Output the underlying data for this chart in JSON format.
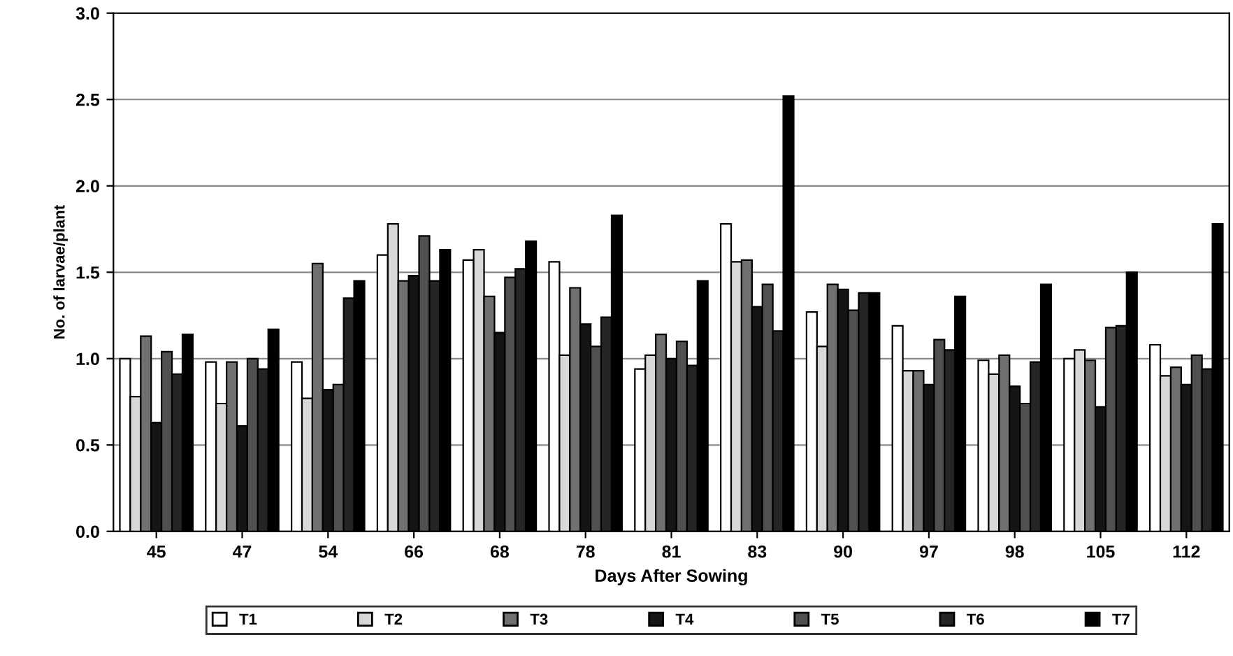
{
  "chart_data": {
    "type": "bar",
    "xlabel": "Days After Sowing",
    "ylabel": "No. of larvae/plant",
    "categories": [
      "45",
      "47",
      "54",
      "66",
      "68",
      "78",
      "81",
      "83",
      "90",
      "97",
      "98",
      "105",
      "112"
    ],
    "series": [
      {
        "name": "T1",
        "color": "#ffffff",
        "values": [
          1.0,
          0.98,
          0.98,
          1.6,
          1.57,
          1.56,
          0.94,
          1.78,
          1.27,
          1.19,
          0.99,
          1.0,
          1.08
        ]
      },
      {
        "name": "T2",
        "color": "#d8d8d8",
        "values": [
          0.78,
          0.74,
          0.77,
          1.78,
          1.63,
          1.02,
          1.02,
          1.56,
          1.07,
          0.93,
          0.91,
          1.05,
          0.9
        ]
      },
      {
        "name": "T3",
        "color": "#707070",
        "values": [
          1.13,
          0.98,
          1.55,
          1.45,
          1.36,
          1.41,
          1.14,
          1.57,
          1.43,
          0.93,
          1.02,
          0.99,
          0.95
        ]
      },
      {
        "name": "T4",
        "color": "#151515",
        "values": [
          0.63,
          0.61,
          0.82,
          1.48,
          1.15,
          1.2,
          1.0,
          1.3,
          1.4,
          0.85,
          0.84,
          0.72,
          0.85
        ]
      },
      {
        "name": "T5",
        "color": "#505050",
        "values": [
          1.04,
          1.0,
          0.85,
          1.71,
          1.47,
          1.07,
          1.1,
          1.43,
          1.28,
          1.11,
          0.74,
          1.18,
          1.02
        ]
      },
      {
        "name": "T6",
        "color": "#252525",
        "values": [
          0.91,
          0.94,
          1.35,
          1.45,
          1.52,
          1.24,
          0.96,
          1.16,
          1.38,
          1.05,
          0.98,
          1.19,
          0.94
        ]
      },
      {
        "name": "T7",
        "color": "#000000",
        "values": [
          1.14,
          1.17,
          1.45,
          1.63,
          1.68,
          1.83,
          1.45,
          2.52,
          1.38,
          1.36,
          1.43,
          1.5,
          1.78
        ]
      }
    ],
    "ylim": [
      0,
      3.0
    ],
    "yticks": [
      {
        "value": 0,
        "label": "0.0"
      },
      {
        "value": 0.5,
        "label": "0.5"
      },
      {
        "value": 1.0,
        "label": "1.0"
      },
      {
        "value": 1.5,
        "label": "1.5"
      },
      {
        "value": 2.0,
        "label": "2.0"
      },
      {
        "value": 2.5,
        "label": "2.5"
      },
      {
        "value": 3.0,
        "label": "3.0"
      }
    ],
    "grid": "y",
    "legend": "bottom"
  }
}
